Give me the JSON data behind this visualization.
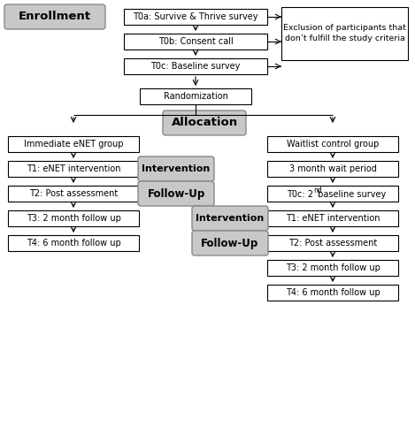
{
  "bg_color": "#ffffff",
  "box_fill_white": "#ffffff",
  "box_fill_gray": "#c8c8c8",
  "box_edge_white": "#000000",
  "box_edge_gray": "#888888",
  "font_size": 7.0,
  "bold_font_size": 9.0,
  "intv_font_size": 8.5,
  "enrollment": "Enrollment",
  "allocation": "Allocation",
  "intervention": "Intervention",
  "followup": "Follow-Up",
  "t0a": "T0a: Survive & Thrive survey",
  "t0b": "T0b: Consent call",
  "t0c": "T0c: Baseline survey",
  "exclusion_line1": "Exclusion of participants that",
  "exclusion_line2": "don’t fulfill the study criteria",
  "randomization": "Randomization",
  "immediate": "Immediate eNET group",
  "waitlist": "Waitlist control group",
  "t1l": "T1: eNET intervention",
  "wait3": "3 month wait period",
  "t2l": "T2: Post assessment",
  "t0c2_line1": "T0c: 2",
  "t0c2_line2": " baseline survey",
  "t1r": "T1: eNET intervention",
  "t2r": "T2: Post assessment",
  "t3l": "T3: 2 month follow up",
  "t3r": "T3: 2 month follow up",
  "t4l": "T4: 6 month follow up",
  "t4r": "T4: 6 month follow up"
}
